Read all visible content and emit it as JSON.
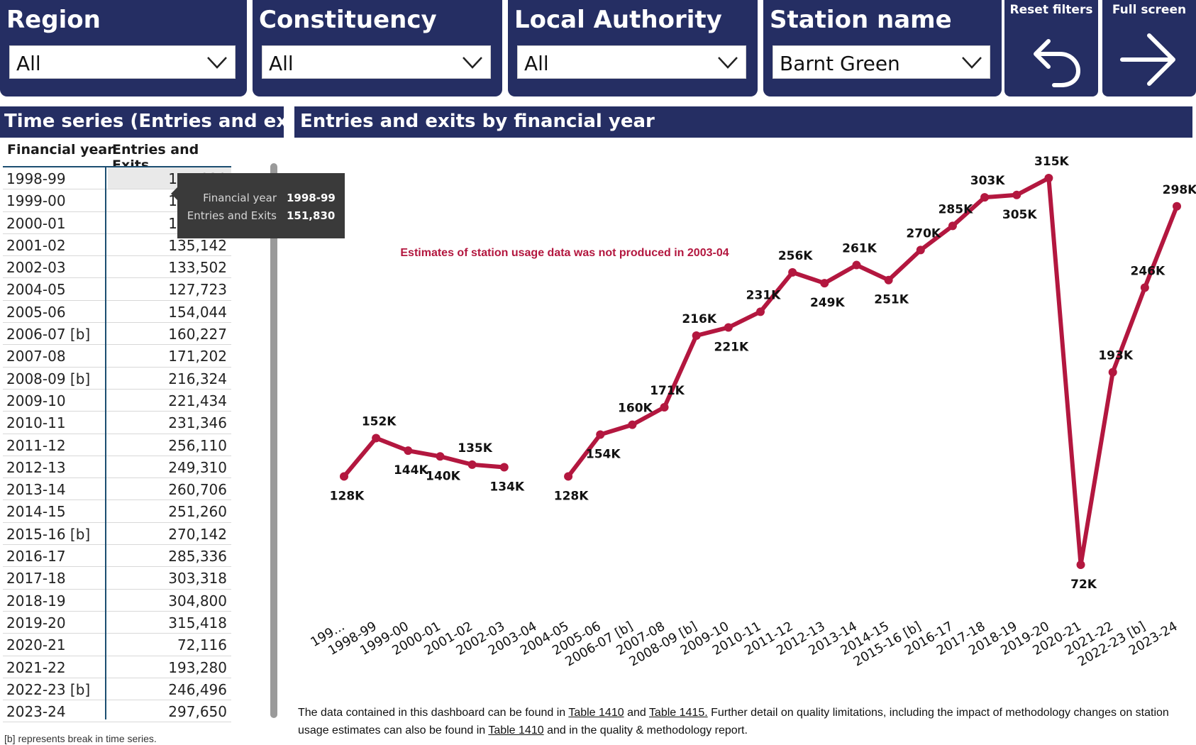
{
  "filters": [
    {
      "label": "Region",
      "value": "All"
    },
    {
      "label": "Constituency",
      "value": "All"
    },
    {
      "label": "Local Authority",
      "value": "All"
    },
    {
      "label": "Station name",
      "value": "Barnt Green"
    }
  ],
  "buttons": {
    "reset": "Reset filters",
    "fullscreen": "Full screen"
  },
  "table": {
    "section_title": "Time series (Entries and exits)",
    "col_year": "Financial year",
    "col_value": "Entries and Exits",
    "rows": [
      {
        "year": "1998-99",
        "value": "151,830"
      },
      {
        "year": "1999-00",
        "value": "143,908"
      },
      {
        "year": "2000-01",
        "value": "140,297"
      },
      {
        "year": "2001-02",
        "value": "135,142"
      },
      {
        "year": "2002-03",
        "value": "133,502"
      },
      {
        "year": "2004-05",
        "value": "127,723"
      },
      {
        "year": "2005-06",
        "value": "154,044"
      },
      {
        "year": "2006-07 [b]",
        "value": "160,227"
      },
      {
        "year": "2007-08",
        "value": "171,202"
      },
      {
        "year": "2008-09 [b]",
        "value": "216,324"
      },
      {
        "year": "2009-10",
        "value": "221,434"
      },
      {
        "year": "2010-11",
        "value": "231,346"
      },
      {
        "year": "2011-12",
        "value": "256,110"
      },
      {
        "year": "2012-13",
        "value": "249,310"
      },
      {
        "year": "2013-14",
        "value": "260,706"
      },
      {
        "year": "2014-15",
        "value": "251,260"
      },
      {
        "year": "2015-16 [b]",
        "value": "270,142"
      },
      {
        "year": "2016-17",
        "value": "285,336"
      },
      {
        "year": "2017-18",
        "value": "303,318"
      },
      {
        "year": "2018-19",
        "value": "304,800"
      },
      {
        "year": "2019-20",
        "value": "315,418"
      },
      {
        "year": "2020-21",
        "value": "72,116"
      },
      {
        "year": "2021-22",
        "value": "193,280"
      },
      {
        "year": "2022-23 [b]",
        "value": "246,496"
      },
      {
        "year": "2023-24",
        "value": "297,650"
      }
    ],
    "footnote": "[b] represents break in time series."
  },
  "tooltip": {
    "k1": "Financial year",
    "v1": "1998-99",
    "k2": "Entries and Exits",
    "v2": "151,830"
  },
  "chart_title": "Entries and exits by financial year",
  "chart_data": {
    "type": "line",
    "title": "Entries and exits by financial year",
    "xlabel": "",
    "ylabel": "",
    "categories": [
      "199...",
      "1998-99",
      "1999-00",
      "2000-01",
      "2001-02",
      "2002-03",
      "2003-04",
      "2004-05",
      "2005-06",
      "2006-07 [b]",
      "2007-08",
      "2008-09 [b]",
      "2009-10",
      "2010-11",
      "2011-12",
      "2012-13",
      "2013-14",
      "2014-15",
      "2015-16 [b]",
      "2016-17",
      "2017-18",
      "2018-19",
      "2019-20",
      "2020-21",
      "2021-22",
      "2022-23 [b]",
      "2023-24"
    ],
    "values": [
      127723,
      151830,
      143908,
      140297,
      135142,
      133502,
      null,
      127723,
      154044,
      160227,
      171202,
      216324,
      221434,
      231346,
      256110,
      249310,
      260706,
      251260,
      270142,
      285336,
      303318,
      304800,
      315418,
      72116,
      193280,
      246496,
      297650
    ],
    "labels": [
      "128K",
      "152K",
      "144K",
      "140K",
      "135K",
      "134K",
      "",
      "128K",
      "154K",
      "160K",
      "171K",
      "216K",
      "221K",
      "231K",
      "256K",
      "249K",
      "261K",
      "251K",
      "270K",
      "285K",
      "303K",
      "305K",
      "315K",
      "72K",
      "193K",
      "246K",
      "298K"
    ],
    "color": "#b3173f",
    "annotation": "Estimates of station usage data was not produced in 2003-04"
  },
  "note": {
    "p1": "The data contained in this dashboard can be found in ",
    "link1": "Table 1410",
    "p2": " and ",
    "link2": "Table 1415.",
    "p3": " Further detail on quality limitations, including the impact of methodology changes on station usage estimates can also be found in ",
    "link3": "Table 1410",
    "p4": " and in the quality & methodology report."
  }
}
